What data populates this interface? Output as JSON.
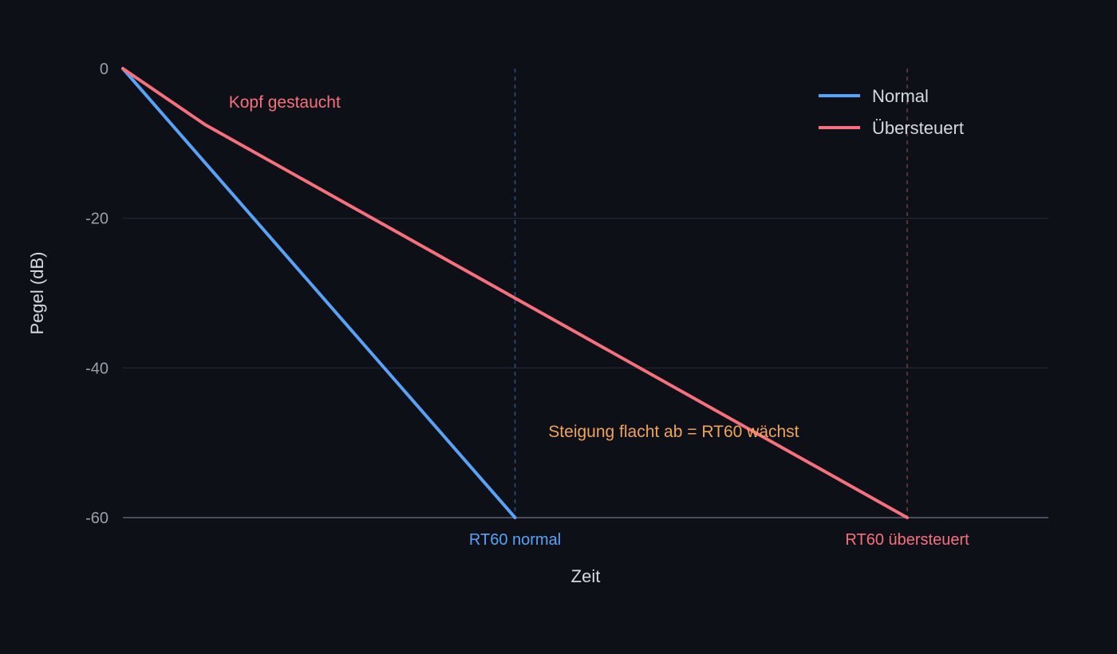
{
  "chart_data": {
    "type": "line",
    "xlabel": "Zeit",
    "ylabel": "Pegel (dB)",
    "ylim": [
      -60,
      0
    ],
    "yticks": [
      0,
      -20,
      -40,
      -60
    ],
    "grid": true,
    "legend_position": "top-right",
    "series": [
      {
        "name": "Normal",
        "color": "#5aa2f7",
        "x": [
          0,
          1.0
        ],
        "y": [
          0,
          -60
        ]
      },
      {
        "name": "Übersteuert",
        "color": "#f7707e",
        "x": [
          0,
          0.21,
          2.0
        ],
        "y": [
          0,
          -7.5,
          -60
        ]
      }
    ],
    "markers": [
      {
        "x": 1.0,
        "label": "RT60 normal",
        "color": "#5aa2f7"
      },
      {
        "x": 2.0,
        "label": "RT60 übersteuert",
        "color": "#f7707e"
      }
    ],
    "annotations": [
      {
        "text": "Kopf gestaucht",
        "x": 0.27,
        "y": -4.5,
        "color": "#f7707e"
      },
      {
        "text": "Steigung flacht ab = RT60 wächst",
        "x": 1.085,
        "y": -48.5,
        "color": "#f0a35c"
      }
    ],
    "xlim": [
      0,
      2.36
    ]
  }
}
